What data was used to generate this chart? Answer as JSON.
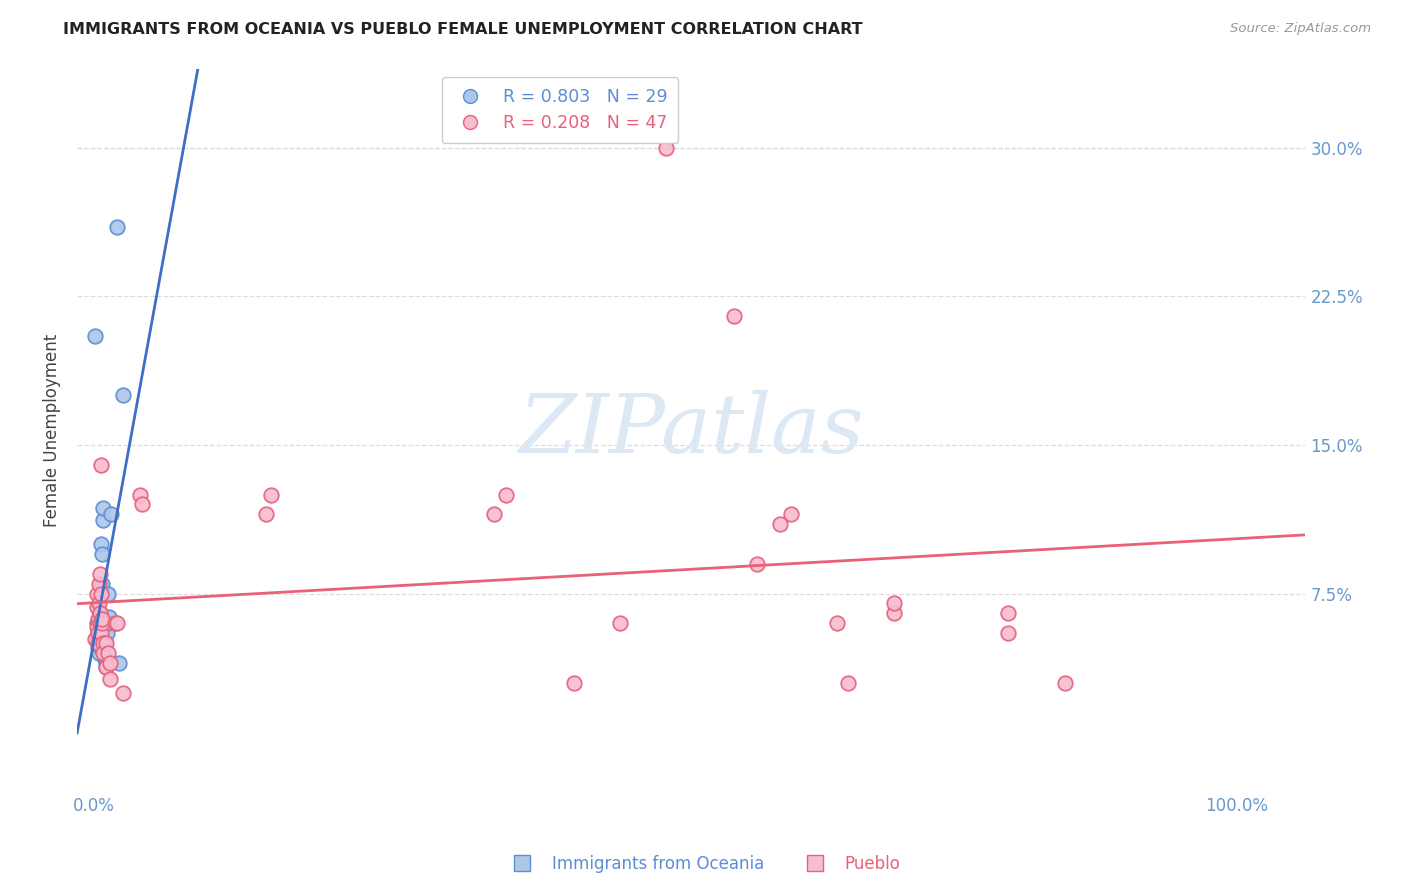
{
  "title": "IMMIGRANTS FROM OCEANIA VS PUEBLO FEMALE UNEMPLOYMENT CORRELATION CHART",
  "source": "Source: ZipAtlas.com",
  "ylabel": "Female Unemployment",
  "legend_blue_r": "R = 0.803",
  "legend_blue_n": "N = 29",
  "legend_pink_r": "R = 0.208",
  "legend_pink_n": "N = 47",
  "legend_label_blue": "Immigrants from Oceania",
  "legend_label_pink": "Pueblo",
  "blue_marker_color": "#aec6e8",
  "blue_edge_color": "#5b8ed6",
  "pink_marker_color": "#f7bdd0",
  "pink_edge_color": "#e8607a",
  "blue_line_color": "#3d6fc4",
  "pink_line_color": "#e8607a",
  "watermark_text": "ZIPatlas",
  "watermark_color": "#dde8f5",
  "background_color": "#ffffff",
  "grid_color": "#dddddd",
  "title_color": "#222222",
  "axis_label_color": "#6699cc",
  "ylabel_color": "#444444",
  "ylim": [
    -0.025,
    0.34
  ],
  "xlim": [
    -0.015,
    1.06
  ],
  "blue_scatter": [
    [
      0.001,
      0.205
    ],
    [
      0.002,
      0.06
    ],
    [
      0.003,
      0.055
    ],
    [
      0.003,
      0.048
    ],
    [
      0.004,
      0.062
    ],
    [
      0.004,
      0.05
    ],
    [
      0.004,
      0.045
    ],
    [
      0.005,
      0.055
    ],
    [
      0.005,
      0.065
    ],
    [
      0.005,
      0.048
    ],
    [
      0.006,
      0.058
    ],
    [
      0.006,
      0.1
    ],
    [
      0.007,
      0.08
    ],
    [
      0.007,
      0.095
    ],
    [
      0.008,
      0.112
    ],
    [
      0.008,
      0.118
    ],
    [
      0.008,
      0.05
    ],
    [
      0.009,
      0.05
    ],
    [
      0.009,
      0.042
    ],
    [
      0.01,
      0.04
    ],
    [
      0.01,
      0.038
    ],
    [
      0.011,
      0.055
    ],
    [
      0.012,
      0.06
    ],
    [
      0.012,
      0.075
    ],
    [
      0.013,
      0.063
    ],
    [
      0.015,
      0.115
    ],
    [
      0.02,
      0.26
    ],
    [
      0.022,
      0.04
    ],
    [
      0.025,
      0.175
    ]
  ],
  "pink_scatter": [
    [
      0.001,
      0.052
    ],
    [
      0.002,
      0.058
    ],
    [
      0.002,
      0.068
    ],
    [
      0.002,
      0.075
    ],
    [
      0.003,
      0.062
    ],
    [
      0.003,
      0.055
    ],
    [
      0.003,
      0.05
    ],
    [
      0.004,
      0.08
    ],
    [
      0.004,
      0.07
    ],
    [
      0.005,
      0.085
    ],
    [
      0.005,
      0.065
    ],
    [
      0.005,
      0.06
    ],
    [
      0.006,
      0.075
    ],
    [
      0.006,
      0.055
    ],
    [
      0.006,
      0.14
    ],
    [
      0.007,
      0.06
    ],
    [
      0.007,
      0.062
    ],
    [
      0.008,
      0.05
    ],
    [
      0.008,
      0.045
    ],
    [
      0.01,
      0.05
    ],
    [
      0.01,
      0.038
    ],
    [
      0.012,
      0.045
    ],
    [
      0.014,
      0.04
    ],
    [
      0.014,
      0.032
    ],
    [
      0.018,
      0.06
    ],
    [
      0.02,
      0.06
    ],
    [
      0.025,
      0.025
    ],
    [
      0.04,
      0.125
    ],
    [
      0.042,
      0.12
    ],
    [
      0.15,
      0.115
    ],
    [
      0.155,
      0.125
    ],
    [
      0.35,
      0.115
    ],
    [
      0.36,
      0.125
    ],
    [
      0.42,
      0.03
    ],
    [
      0.46,
      0.06
    ],
    [
      0.5,
      0.3
    ],
    [
      0.56,
      0.215
    ],
    [
      0.58,
      0.09
    ],
    [
      0.6,
      0.11
    ],
    [
      0.61,
      0.115
    ],
    [
      0.65,
      0.06
    ],
    [
      0.66,
      0.03
    ],
    [
      0.7,
      0.065
    ],
    [
      0.7,
      0.07
    ],
    [
      0.8,
      0.065
    ],
    [
      0.8,
      0.055
    ],
    [
      0.85,
      0.03
    ]
  ]
}
